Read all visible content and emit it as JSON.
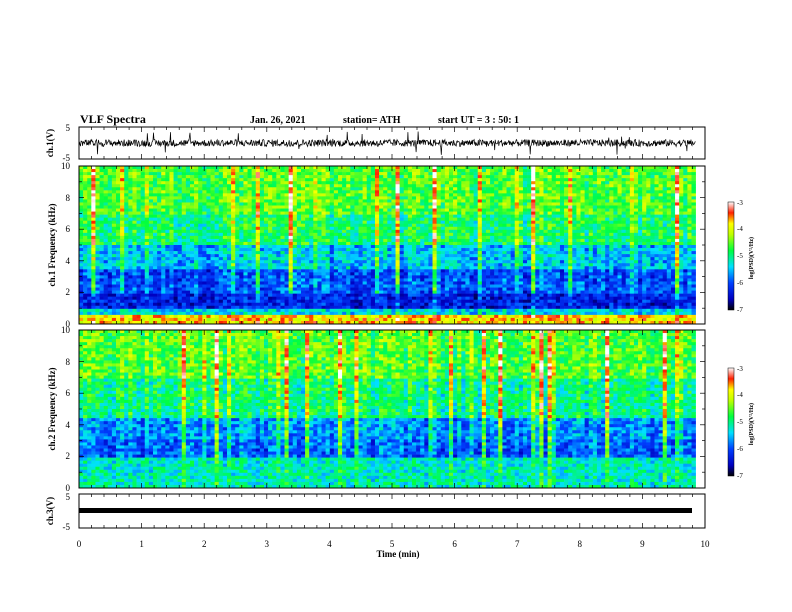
{
  "header": {
    "title": "VLF Spectra",
    "date": "Jan. 26, 2021",
    "station": "station= ATH",
    "start": "start  UT =   3 : 50: 1"
  },
  "colors": {
    "spectrogram_scale": [
      "#000080",
      "#0000ff",
      "#0080ff",
      "#00ffff",
      "#00ff80",
      "#80ff00",
      "#ffff00",
      "#ff8000",
      "#ff0000",
      "#800000"
    ],
    "trace": "#000000"
  },
  "chart_data": [
    {
      "type": "line",
      "panel": "ch1-waveform",
      "ylabel": "ch.1(V)",
      "ylim": [
        -5,
        5
      ],
      "yticks": [
        "5",
        "-5"
      ],
      "xlim": [
        0,
        10
      ],
      "description_values": {
        "baseline_v": 0,
        "typical_peak_v": 1.5
      }
    },
    {
      "type": "heatmap",
      "panel": "ch1-spectrogram",
      "ylabel": "ch.1 Frequency (kHz)",
      "ylim": [
        0,
        10
      ],
      "yticks": [
        "0",
        "2",
        "4",
        "6",
        "8",
        "10"
      ],
      "xlim": [
        0,
        9.85
      ],
      "colorbar": {
        "label": "log(PSD)(V²/Hz)",
        "range": [
          -7,
          -3
        ],
        "ticks": [
          "-3",
          "-4",
          "-5",
          "-6",
          "-7"
        ]
      },
      "band_levels": [
        {
          "f_khz": [
            0,
            0.5
          ],
          "level": -3.8
        },
        {
          "f_khz": [
            0.5,
            1.0
          ],
          "level": -5.4
        },
        {
          "f_khz": [
            1.0,
            2.0
          ],
          "level": -6.3
        },
        {
          "f_khz": [
            2.0,
            3.5
          ],
          "level": -6.0
        },
        {
          "f_khz": [
            3.5,
            5.0
          ],
          "level": -5.5
        },
        {
          "f_khz": [
            5.0,
            7.0
          ],
          "level": -4.9
        },
        {
          "f_khz": [
            7.0,
            10.0
          ],
          "level": -4.6
        }
      ]
    },
    {
      "type": "heatmap",
      "panel": "ch2-spectrogram",
      "ylabel": "ch.2 Frequency (kHz)",
      "ylim": [
        0,
        10
      ],
      "yticks": [
        "0",
        "2",
        "4",
        "6",
        "8",
        "10"
      ],
      "xlim": [
        0,
        9.85
      ],
      "colorbar": {
        "label": "log(PSD)(V²/Hz)",
        "range": [
          -7,
          -3
        ],
        "ticks": [
          "-3",
          "-4",
          "-5",
          "-6",
          "-7"
        ]
      },
      "band_levels": [
        {
          "f_khz": [
            0,
            2.0
          ],
          "level": -5.2
        },
        {
          "f_khz": [
            2.0,
            3.0
          ],
          "level": -5.9
        },
        {
          "f_khz": [
            3.0,
            4.5
          ],
          "level": -5.7
        },
        {
          "f_khz": [
            4.5,
            7.0
          ],
          "level": -5.0
        },
        {
          "f_khz": [
            7.0,
            10.0
          ],
          "level": -4.6
        }
      ]
    },
    {
      "type": "line",
      "panel": "ch3-waveform",
      "ylabel": "ch.3(V)",
      "ylim": [
        -5,
        5
      ],
      "yticks": [
        "5",
        "-5"
      ],
      "xlim": [
        0,
        10
      ],
      "description_values": {
        "constant_v": 0
      }
    }
  ],
  "xaxis": {
    "label": "Time  (min)",
    "ticks": [
      "0",
      "1",
      "2",
      "3",
      "4",
      "5",
      "6",
      "7",
      "8",
      "9",
      "10"
    ]
  }
}
